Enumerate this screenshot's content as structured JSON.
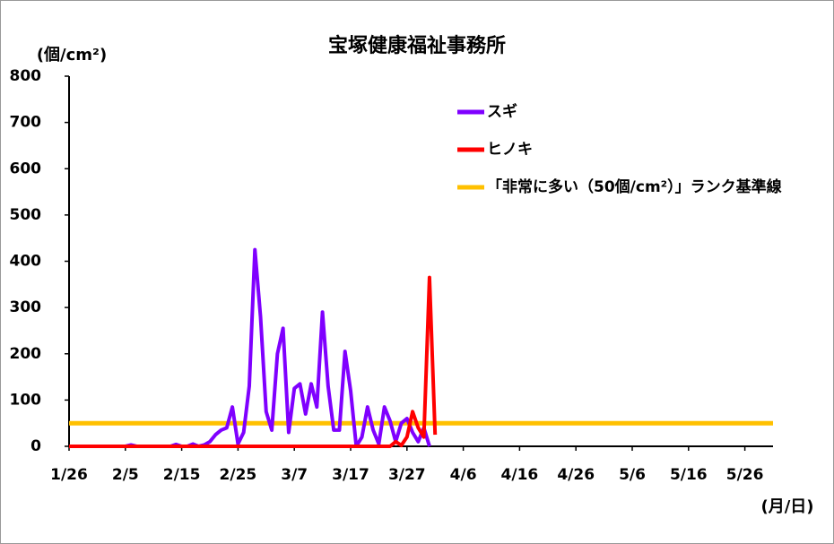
{
  "chart_data": {
    "type": "line",
    "title": "宝塚健康福祉事務所",
    "y_label": "(個/cm²)",
    "x_label": "(月/日)",
    "x": [
      0,
      1,
      2,
      3,
      4,
      5,
      6,
      7,
      8,
      9,
      10,
      11,
      12,
      13,
      14,
      15,
      16,
      17,
      18,
      19,
      20,
      21,
      22,
      23,
      24,
      25,
      26,
      27,
      28,
      29,
      30,
      31,
      32,
      33,
      34,
      35,
      36,
      37,
      38,
      39,
      40,
      41,
      42,
      43,
      44,
      45,
      46,
      47,
      48,
      49,
      50,
      51,
      52,
      53,
      54,
      55,
      56,
      57,
      58,
      59,
      60,
      61,
      62,
      63,
      64,
      65
    ],
    "series": [
      {
        "name": "スギ",
        "color": "#7f00ff",
        "values": [
          0,
          0,
          0,
          0,
          0,
          0,
          0,
          0,
          0,
          0,
          0,
          3,
          0,
          0,
          0,
          0,
          0,
          0,
          0,
          4,
          0,
          0,
          5,
          0,
          3,
          10,
          25,
          35,
          40,
          85,
          5,
          30,
          130,
          425,
          280,
          75,
          35,
          200,
          255,
          30,
          125,
          135,
          70,
          135,
          85,
          290,
          130,
          35,
          35,
          205,
          120,
          0,
          20,
          85,
          35,
          5,
          85,
          55,
          10,
          50,
          60,
          30,
          10,
          40,
          0,
          null
        ]
      },
      {
        "name": "ヒノキ",
        "color": "#ff0000",
        "values": [
          0,
          0,
          0,
          0,
          0,
          0,
          0,
          0,
          0,
          0,
          0,
          0,
          0,
          0,
          0,
          0,
          0,
          0,
          0,
          0,
          0,
          0,
          0,
          0,
          0,
          0,
          0,
          0,
          0,
          0,
          0,
          0,
          0,
          0,
          0,
          0,
          0,
          0,
          0,
          0,
          0,
          0,
          0,
          0,
          0,
          0,
          0,
          0,
          0,
          0,
          0,
          0,
          0,
          0,
          0,
          0,
          0,
          0,
          10,
          2,
          20,
          75,
          40,
          20,
          365,
          25
        ]
      }
    ],
    "reference": {
      "name": "「非常に多い（50個/cm²）」ランク基準線",
      "value": 50,
      "color": "#ffc000"
    },
    "xlim": [
      0,
      125
    ],
    "xticks": [
      {
        "value": 0,
        "label": "1/26"
      },
      {
        "value": 10,
        "label": "2/5"
      },
      {
        "value": 20,
        "label": "2/15"
      },
      {
        "value": 30,
        "label": "2/25"
      },
      {
        "value": 40,
        "label": "3/7"
      },
      {
        "value": 50,
        "label": "3/17"
      },
      {
        "value": 60,
        "label": "3/27"
      },
      {
        "value": 70,
        "label": "4/6"
      },
      {
        "value": 80,
        "label": "4/16"
      },
      {
        "value": 90,
        "label": "4/26"
      },
      {
        "value": 100,
        "label": "5/6"
      },
      {
        "value": 110,
        "label": "5/16"
      },
      {
        "value": 120,
        "label": "5/26"
      }
    ],
    "ylim": [
      0,
      800
    ],
    "yticks": [
      0,
      100,
      200,
      300,
      400,
      500,
      600,
      700,
      800
    ]
  }
}
